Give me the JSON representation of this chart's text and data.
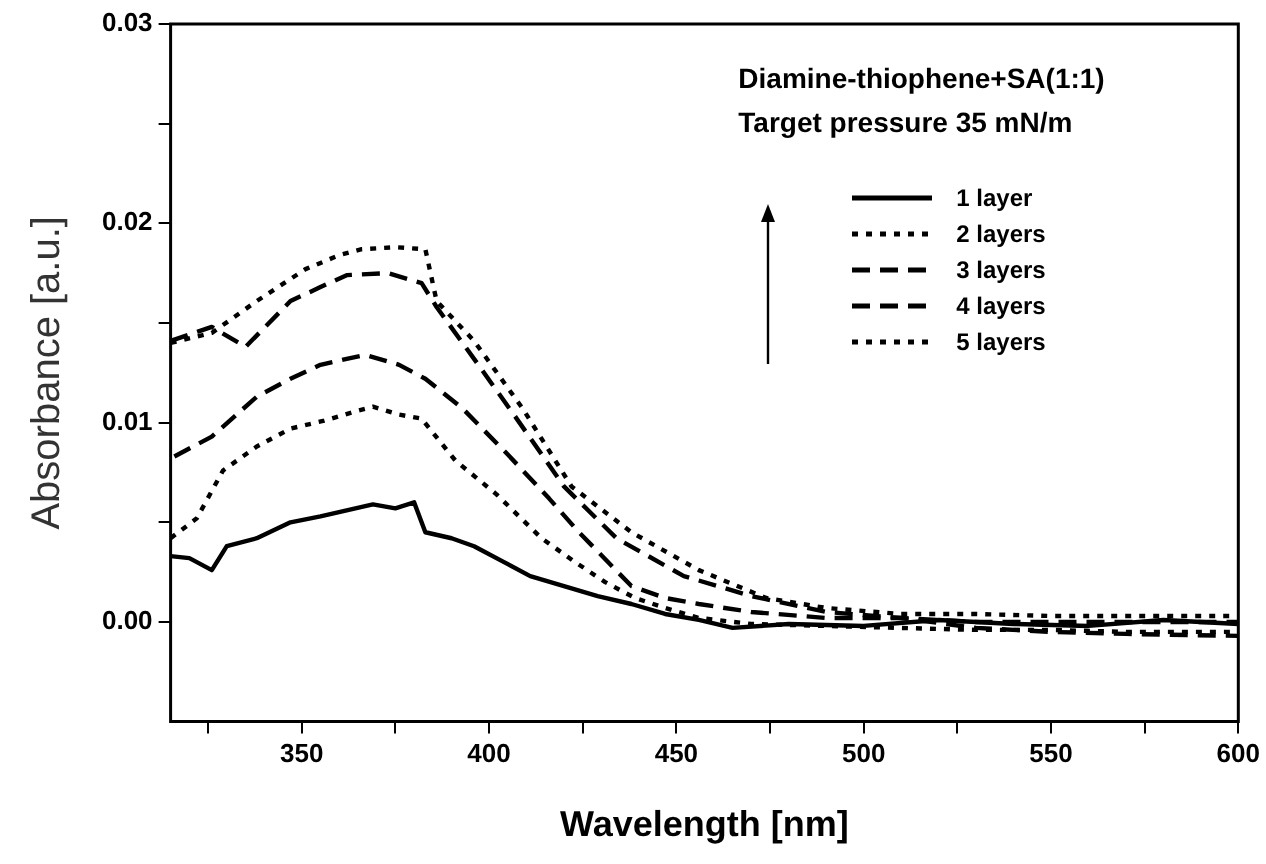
{
  "chart_data": {
    "type": "line",
    "xlabel": "Wavelength [nm]",
    "ylabel": "Absorbance [a.u.]",
    "annotations": [
      "Diamine-thiophene+SA(1:1)",
      "Target pressure 35 mN/m"
    ],
    "xlim": [
      315,
      600
    ],
    "ylim": [
      -0.005,
      0.03
    ],
    "xticks": [
      {
        "value": 325,
        "label": null
      },
      350,
      {
        "value": 375,
        "label": null
      },
      400,
      {
        "value": 425,
        "label": null
      },
      450,
      {
        "value": 475,
        "label": null
      },
      500,
      {
        "value": 525,
        "label": null
      },
      550,
      {
        "value": 575,
        "label": null
      },
      600
    ],
    "yticks": [
      {
        "value": 0,
        "label": "0.00"
      },
      {
        "value": 0.005,
        "label": null
      },
      {
        "value": 0.01,
        "label": "0.01"
      },
      {
        "value": 0.015,
        "label": null
      },
      {
        "value": 0.02,
        "label": "0.02"
      },
      {
        "value": 0.025,
        "label": null
      },
      {
        "value": 0.03,
        "label": "0.03"
      }
    ],
    "grid": false,
    "legend": "top right",
    "marker": "none",
    "series": [
      {
        "name": "1 layer",
        "color": "#000000",
        "line_style": "solid",
        "x": [
          315,
          320,
          326,
          330,
          338,
          347,
          355,
          362,
          369,
          375,
          380,
          383,
          390,
          396,
          404,
          411,
          420,
          429,
          438,
          447,
          456,
          465,
          480,
          500,
          520,
          540,
          560,
          580,
          600
        ],
        "values": [
          0.0033,
          0.0032,
          0.0026,
          0.0038,
          0.0042,
          0.005,
          0.0053,
          0.0056,
          0.0059,
          0.0057,
          0.006,
          0.0045,
          0.0042,
          0.0038,
          0.003,
          0.0023,
          0.0018,
          0.0013,
          0.0009,
          0.0004,
          0.0001,
          -0.0003,
          -0.0001,
          -0.0002,
          0.0001,
          -0.0001,
          -0.0002,
          0.0001,
          -0.0001
        ]
      },
      {
        "name": "2 layers",
        "color": "#000000",
        "line_style": "dotted",
        "x": [
          315,
          322,
          329,
          338,
          347,
          356,
          365,
          369,
          376,
          382,
          391,
          402,
          414,
          423,
          431,
          439,
          447,
          456,
          470,
          490,
          510,
          530,
          550,
          570,
          600
        ],
        "values": [
          0.0042,
          0.0052,
          0.0076,
          0.0088,
          0.0097,
          0.0101,
          0.0106,
          0.0108,
          0.0104,
          0.0102,
          0.0081,
          0.0064,
          0.0042,
          0.003,
          0.002,
          0.0012,
          0.0007,
          0.0002,
          -0.0001,
          -0.0002,
          -0.0003,
          -0.0004,
          -0.0004,
          -0.0005,
          -0.0005
        ]
      },
      {
        "name": "3 layers",
        "color": "#000000",
        "line_style": "dashed",
        "x": [
          316,
          326,
          338,
          347,
          355,
          362,
          367,
          376,
          383,
          393,
          405,
          416,
          424,
          438,
          447,
          456,
          470,
          490,
          510,
          530,
          550,
          570,
          600
        ],
        "values": [
          0.0083,
          0.0093,
          0.0113,
          0.0122,
          0.0129,
          0.0132,
          0.0134,
          0.0129,
          0.0122,
          0.0107,
          0.0084,
          0.0062,
          0.0045,
          0.0018,
          0.0012,
          0.0009,
          0.0005,
          0.0002,
          0.0002,
          0,
          0,
          0,
          0
        ]
      },
      {
        "name": "4 layers",
        "color": "#000000",
        "line_style": "dashed",
        "x": [
          315,
          326,
          335,
          347,
          355,
          362,
          373,
          382,
          386,
          396,
          407,
          420,
          434,
          452,
          470,
          490,
          510,
          530,
          550,
          570,
          600
        ],
        "values": [
          0.0141,
          0.0148,
          0.0138,
          0.0161,
          0.0168,
          0.0174,
          0.0175,
          0.017,
          0.0158,
          0.0132,
          0.0103,
          0.0068,
          0.0042,
          0.0023,
          0.0013,
          0.0005,
          0.0002,
          -0.0003,
          -0.0005,
          -0.0006,
          -0.0007
        ]
      },
      {
        "name": "5 layers",
        "color": "#000000",
        "line_style": "dotted",
        "x": [
          315,
          326,
          338,
          351,
          360,
          366,
          375,
          383,
          386,
          396,
          409,
          422,
          438,
          456,
          474,
          490,
          510,
          530,
          550,
          570,
          600
        ],
        "values": [
          0.014,
          0.0145,
          0.0161,
          0.0177,
          0.0184,
          0.0187,
          0.0188,
          0.0187,
          0.0161,
          0.0141,
          0.0107,
          0.0068,
          0.0045,
          0.0026,
          0.0012,
          0.0007,
          0.0004,
          0.0004,
          0.0003,
          0.0003,
          0.0003
        ]
      }
    ]
  }
}
